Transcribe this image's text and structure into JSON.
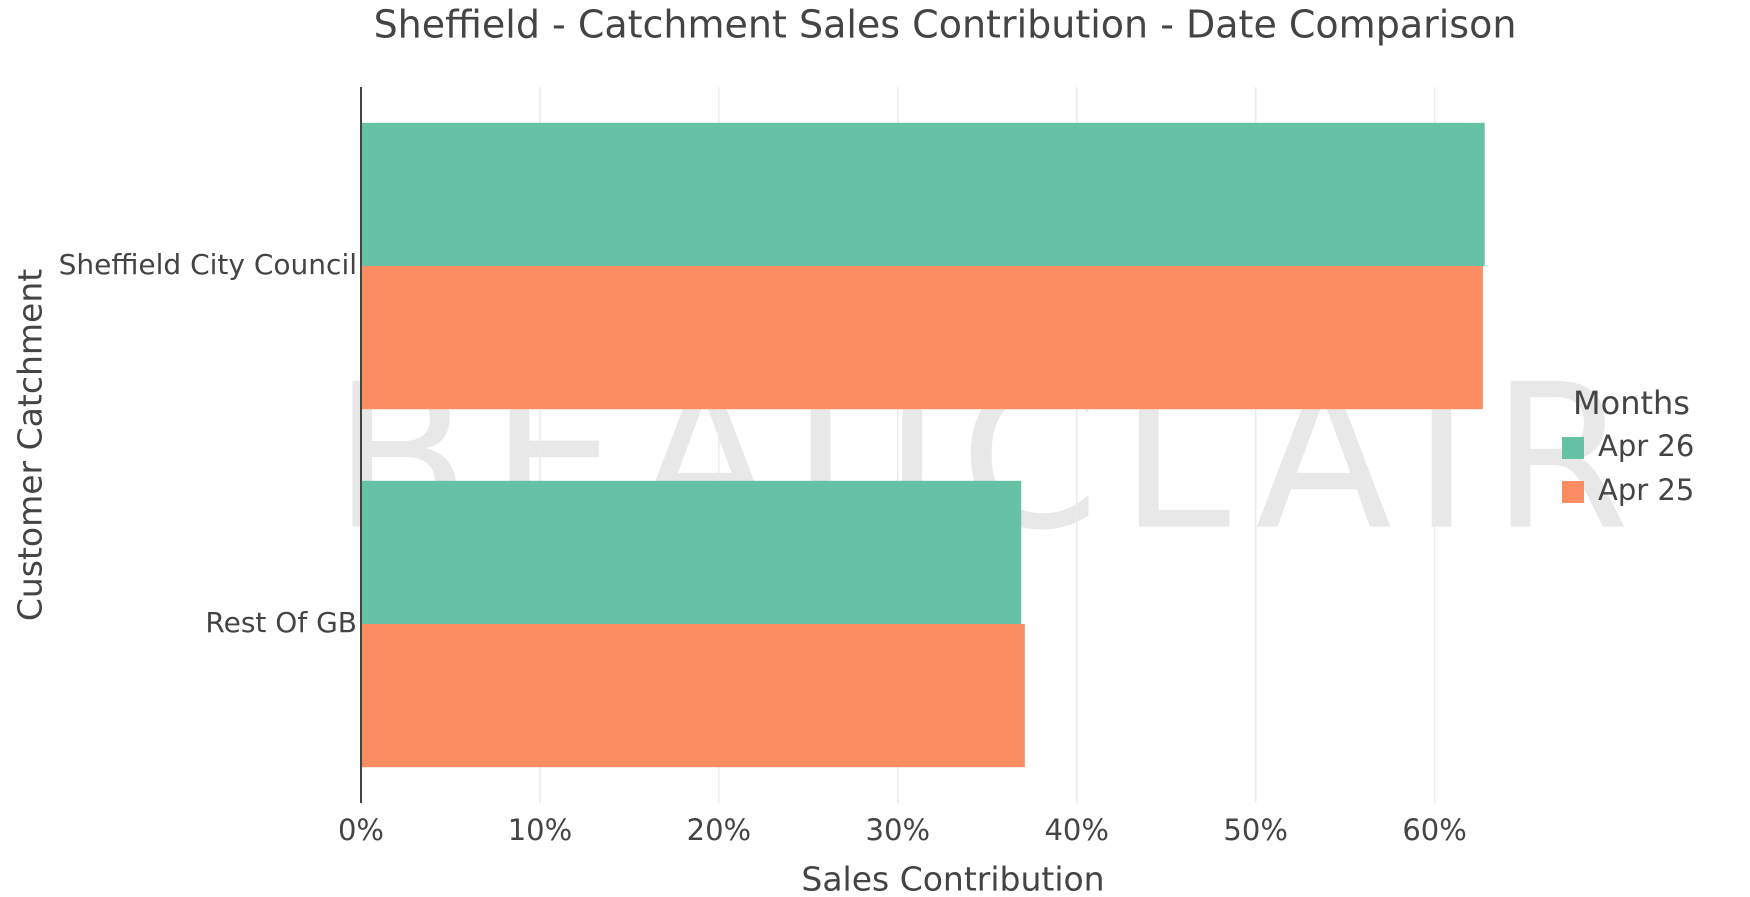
{
  "chart_data": {
    "type": "hbar",
    "title": "Sheffield - Catchment Sales Contribution - Date Comparison",
    "xlabel": "Sales Contribution",
    "ylabel": "Customer Catchment",
    "watermark": "BEAUCLAIR",
    "categories": [
      "Sheffield City Council",
      "Rest Of GB"
    ],
    "series": [
      {
        "name": "Apr 26",
        "color": "#66c2a5",
        "values": [
          62.8,
          36.9
        ]
      },
      {
        "name": "Apr 25",
        "color": "#fc8d62",
        "values": [
          62.7,
          37.1
        ]
      }
    ],
    "legend_title": "Months",
    "legend": "right",
    "xlim": [
      0,
      65.5
    ],
    "xticks": [
      {
        "value": 0,
        "label": "0%"
      },
      {
        "value": 10,
        "label": "10%"
      },
      {
        "value": 20,
        "label": "20%"
      },
      {
        "value": 30,
        "label": "30%"
      },
      {
        "value": 40,
        "label": "40%"
      },
      {
        "value": 50,
        "label": "50%"
      },
      {
        "value": 60,
        "label": "60%"
      }
    ],
    "grid": true
  }
}
